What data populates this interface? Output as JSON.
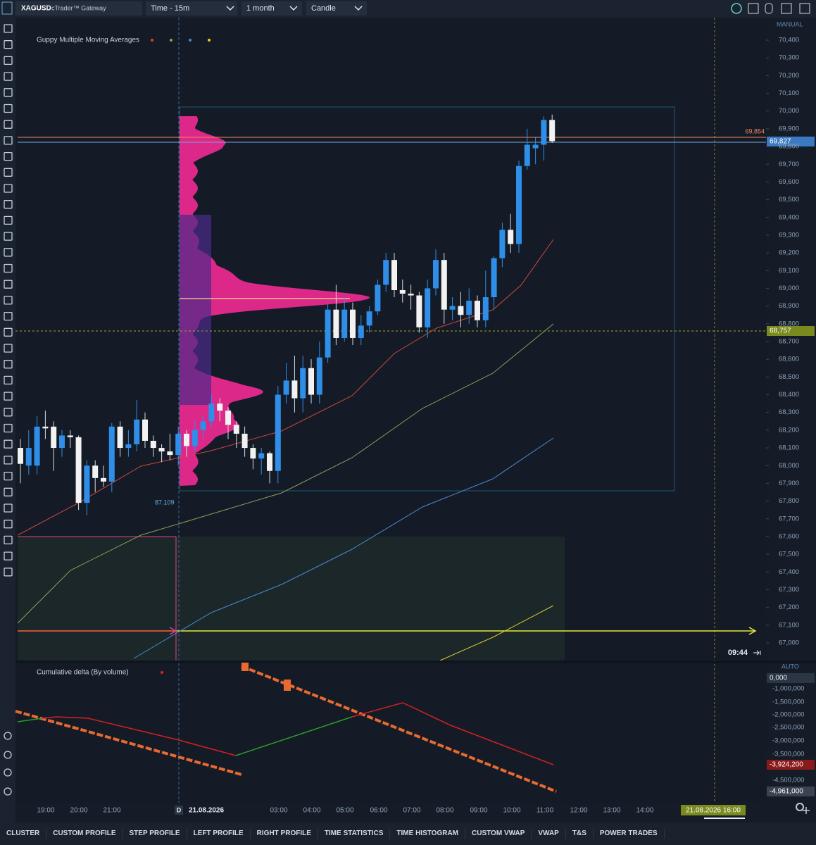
{
  "toolbar": {
    "symbol": "XAGUSD",
    "broker": "cTrader™ Gateway",
    "timeframe": "Time - 15m",
    "range": "1 month",
    "chart_type": "Candle"
  },
  "price_axis": {
    "mode": "MANUAL",
    "ticks": [
      {
        "value": 70.4,
        "label": "70,400"
      },
      {
        "value": 70.3,
        "label": "70,300"
      },
      {
        "value": 70.2,
        "label": "70,200"
      },
      {
        "value": 70.1,
        "label": "70,100"
      },
      {
        "value": 70.0,
        "label": "70,000"
      },
      {
        "value": 69.9,
        "label": "69,900"
      },
      {
        "value": 69.8,
        "label": "69,800"
      },
      {
        "value": 69.7,
        "label": "69,700"
      },
      {
        "value": 69.6,
        "label": "69,600"
      },
      {
        "value": 69.5,
        "label": "69,500"
      },
      {
        "value": 69.4,
        "label": "69,400"
      },
      {
        "value": 69.3,
        "label": "69,300"
      },
      {
        "value": 69.2,
        "label": "69,200"
      },
      {
        "value": 69.1,
        "label": "69,100"
      },
      {
        "value": 69.0,
        "label": "69,000"
      },
      {
        "value": 68.9,
        "label": "68,900"
      },
      {
        "value": 68.8,
        "label": "68,800"
      },
      {
        "value": 68.7,
        "label": "68,700"
      },
      {
        "value": 68.6,
        "label": "68,600"
      },
      {
        "value": 68.5,
        "label": "68,500"
      },
      {
        "value": 68.4,
        "label": "68,400"
      },
      {
        "value": 68.3,
        "label": "68,300"
      },
      {
        "value": 68.2,
        "label": "68,200"
      },
      {
        "value": 68.1,
        "label": "68,100"
      },
      {
        "value": 68.0,
        "label": "68,000"
      },
      {
        "value": 67.9,
        "label": "67,900"
      },
      {
        "value": 67.8,
        "label": "67,800"
      },
      {
        "value": 67.7,
        "label": "67,700"
      },
      {
        "value": 67.6,
        "label": "67,600"
      },
      {
        "value": 67.5,
        "label": "67,500"
      },
      {
        "value": 67.4,
        "label": "67,400"
      },
      {
        "value": 67.3,
        "label": "67,300"
      },
      {
        "value": 67.2,
        "label": "67,200"
      },
      {
        "value": 67.1,
        "label": "67,100"
      },
      {
        "value": 67.0,
        "label": "67,000"
      }
    ]
  },
  "badges": {
    "line_orange": "69,854",
    "line_blue": "69,827",
    "crosshair": "68,757",
    "profile_label": "87.109",
    "countdown": "09:44",
    "time_badge": "21.08.2026 16:00"
  },
  "indicators": {
    "main": "Guppy Multiple Moving Averages",
    "delta": "Cumulative delta (By volume)"
  },
  "delta_axis": {
    "mode": "AUTO",
    "labels": [
      "-1,000,000",
      "-1,500,000",
      "-2,000,000",
      "-2,500,000",
      "-3,000,000",
      "-3,500,000",
      "-4,500,000"
    ],
    "badges": [
      "0,000",
      "-3,924,200",
      "-4,961,000"
    ]
  },
  "time_axis": [
    "19:00",
    "20:00",
    "21:00",
    "21.08.2026",
    "03:00",
    "04:00",
    "05:00",
    "06:00",
    "07:00",
    "08:00",
    "09:00",
    "10:00",
    "11:00",
    "12:00",
    "13:00",
    "14:00"
  ],
  "candles": [
    {
      "o": 68.1,
      "h": 68.15,
      "l": 67.9,
      "c": 68.01
    },
    {
      "o": 68.0,
      "h": 68.2,
      "l": 67.95,
      "c": 68.1
    },
    {
      "o": 68.0,
      "h": 68.28,
      "l": 67.95,
      "c": 68.22
    },
    {
      "o": 68.22,
      "h": 68.31,
      "l": 68.15,
      "c": 68.21
    },
    {
      "o": 68.22,
      "h": 68.25,
      "l": 67.97,
      "c": 68.1
    },
    {
      "o": 68.1,
      "h": 68.2,
      "l": 68.05,
      "c": 68.17
    },
    {
      "o": 68.17,
      "h": 68.2,
      "l": 68.1,
      "c": 68.16
    },
    {
      "o": 68.16,
      "h": 68.17,
      "l": 67.75,
      "c": 67.79
    },
    {
      "o": 67.79,
      "h": 68.03,
      "l": 67.72,
      "c": 68.0
    },
    {
      "o": 68.0,
      "h": 68.03,
      "l": 67.85,
      "c": 67.93
    },
    {
      "o": 67.93,
      "h": 68.0,
      "l": 67.88,
      "c": 67.91
    },
    {
      "o": 67.91,
      "h": 68.24,
      "l": 67.85,
      "c": 68.22
    },
    {
      "o": 68.22,
      "h": 68.25,
      "l": 68.05,
      "c": 68.1
    },
    {
      "o": 68.1,
      "h": 68.2,
      "l": 68.05,
      "c": 68.12
    },
    {
      "o": 68.12,
      "h": 68.37,
      "l": 68.08,
      "c": 68.26
    },
    {
      "o": 68.26,
      "h": 68.3,
      "l": 68.1,
      "c": 68.14
    },
    {
      "o": 68.14,
      "h": 68.17,
      "l": 68.05,
      "c": 68.1
    },
    {
      "o": 68.1,
      "h": 68.12,
      "l": 68.02,
      "c": 68.08
    },
    {
      "o": 68.08,
      "h": 68.18,
      "l": 68.03,
      "c": 68.06
    },
    {
      "o": 68.06,
      "h": 68.22,
      "l": 68.0,
      "c": 68.18
    },
    {
      "o": 68.18,
      "h": 68.2,
      "l": 68.05,
      "c": 68.11
    },
    {
      "o": 68.11,
      "h": 68.25,
      "l": 68.08,
      "c": 68.2
    },
    {
      "o": 68.2,
      "h": 68.28,
      "l": 68.15,
      "c": 68.25
    },
    {
      "o": 68.25,
      "h": 68.4,
      "l": 68.22,
      "c": 68.35
    },
    {
      "o": 68.35,
      "h": 68.38,
      "l": 68.25,
      "c": 68.31
    },
    {
      "o": 68.31,
      "h": 68.33,
      "l": 68.15,
      "c": 68.23
    },
    {
      "o": 68.23,
      "h": 68.25,
      "l": 68.1,
      "c": 68.18
    },
    {
      "o": 68.18,
      "h": 68.22,
      "l": 68.05,
      "c": 68.1
    },
    {
      "o": 68.1,
      "h": 68.12,
      "l": 67.98,
      "c": 68.04
    },
    {
      "o": 68.04,
      "h": 68.1,
      "l": 67.95,
      "c": 68.07
    },
    {
      "o": 68.07,
      "h": 68.08,
      "l": 67.9,
      "c": 67.97
    },
    {
      "o": 67.97,
      "h": 68.45,
      "l": 67.9,
      "c": 68.4
    },
    {
      "o": 68.4,
      "h": 68.58,
      "l": 68.35,
      "c": 68.48
    },
    {
      "o": 68.48,
      "h": 68.62,
      "l": 68.3,
      "c": 68.38
    },
    {
      "o": 68.38,
      "h": 68.62,
      "l": 68.3,
      "c": 68.55
    },
    {
      "o": 68.55,
      "h": 68.6,
      "l": 68.35,
      "c": 68.4
    },
    {
      "o": 68.4,
      "h": 68.7,
      "l": 68.35,
      "c": 68.61
    },
    {
      "o": 68.61,
      "h": 68.92,
      "l": 68.58,
      "c": 68.88
    },
    {
      "o": 68.88,
      "h": 69.02,
      "l": 68.68,
      "c": 68.72
    },
    {
      "o": 68.72,
      "h": 68.95,
      "l": 68.7,
      "c": 68.88
    },
    {
      "o": 68.88,
      "h": 68.92,
      "l": 68.68,
      "c": 68.72
    },
    {
      "o": 68.72,
      "h": 68.85,
      "l": 68.68,
      "c": 68.79
    },
    {
      "o": 68.79,
      "h": 68.9,
      "l": 68.75,
      "c": 68.87
    },
    {
      "o": 68.87,
      "h": 69.05,
      "l": 68.85,
      "c": 69.02
    },
    {
      "o": 69.02,
      "h": 69.2,
      "l": 68.98,
      "c": 69.16
    },
    {
      "o": 69.16,
      "h": 69.2,
      "l": 68.95,
      "c": 68.99
    },
    {
      "o": 68.99,
      "h": 69.05,
      "l": 68.92,
      "c": 68.97
    },
    {
      "o": 68.97,
      "h": 69.02,
      "l": 68.88,
      "c": 68.96
    },
    {
      "o": 68.96,
      "h": 68.98,
      "l": 68.75,
      "c": 68.78
    },
    {
      "o": 68.78,
      "h": 69.05,
      "l": 68.72,
      "c": 69.0
    },
    {
      "o": 69.0,
      "h": 69.22,
      "l": 68.96,
      "c": 69.16
    },
    {
      "o": 69.16,
      "h": 69.2,
      "l": 68.8,
      "c": 68.88
    },
    {
      "o": 68.88,
      "h": 68.95,
      "l": 68.82,
      "c": 68.9
    },
    {
      "o": 68.9,
      "h": 68.98,
      "l": 68.78,
      "c": 68.85
    },
    {
      "o": 68.85,
      "h": 69.0,
      "l": 68.8,
      "c": 68.93
    },
    {
      "o": 68.93,
      "h": 68.96,
      "l": 68.78,
      "c": 68.82
    },
    {
      "o": 68.82,
      "h": 69.1,
      "l": 68.78,
      "c": 68.95
    },
    {
      "o": 68.95,
      "h": 69.18,
      "l": 68.88,
      "c": 69.17
    },
    {
      "o": 69.17,
      "h": 69.37,
      "l": 69.12,
      "c": 69.33
    },
    {
      "o": 69.33,
      "h": 69.42,
      "l": 69.2,
      "c": 69.25
    },
    {
      "o": 69.25,
      "h": 69.72,
      "l": 69.2,
      "c": 69.69
    },
    {
      "o": 69.69,
      "h": 69.9,
      "l": 69.67,
      "c": 69.81
    },
    {
      "o": 69.79,
      "h": 69.85,
      "l": 69.7,
      "c": 69.81
    },
    {
      "o": 69.81,
      "h": 69.97,
      "l": 69.72,
      "c": 69.95
    },
    {
      "o": 69.95,
      "h": 69.98,
      "l": 69.82,
      "c": 69.83
    }
  ],
  "tabs": [
    "CLUSTER",
    "CUSTOM PROFILE",
    "STEP PROFILE",
    "LEFT PROFILE",
    "RIGHT PROFILE",
    "TIME STATISTICS",
    "TIME HISTOGRAM",
    "CUSTOM VWAP",
    "VWAP",
    "T&S",
    "POWER TRADES"
  ]
}
